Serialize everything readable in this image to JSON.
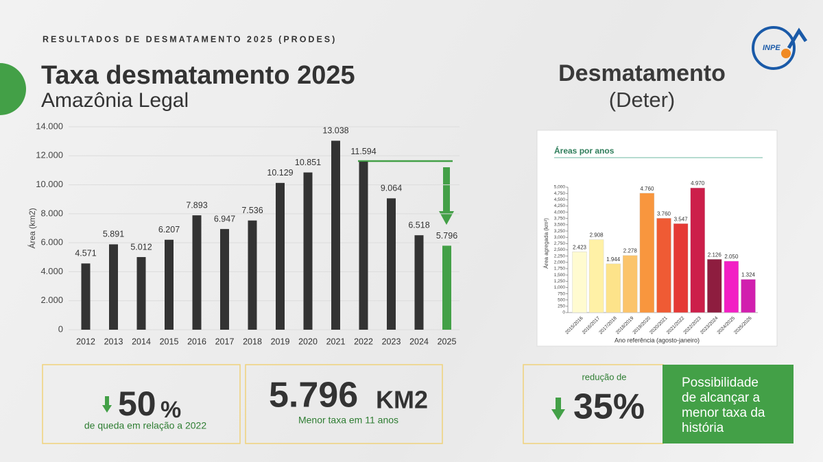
{
  "header": {
    "kicker": "RESULTADOS DE DESMATAMENTO 2025 (PRODES)",
    "title": "Taxa desmatamento 2025",
    "subtitle": "Amazônia Legal",
    "right_title": "Desmatamento",
    "right_subtitle": "(Deter)",
    "logo": "INPE"
  },
  "chart_data": [
    {
      "type": "bar",
      "ylabel": "Área (km2)",
      "categories": [
        "2012",
        "2013",
        "2014",
        "2015",
        "2016",
        "2017",
        "2018",
        "2019",
        "2020",
        "2021",
        "2022",
        "2023",
        "2024",
        "2025"
      ],
      "values": [
        4571,
        5891,
        5012,
        6207,
        7893,
        6947,
        7536,
        10129,
        10851,
        13038,
        11594,
        9064,
        6518,
        5796
      ],
      "value_labels": [
        "4.571",
        "5.891",
        "5.012",
        "6.207",
        "7.893",
        "6.947",
        "7.536",
        "10.129",
        "10.851",
        "13.038",
        "11.594",
        "9.064",
        "6.518",
        "5.796"
      ],
      "colors": [
        "#333333",
        "#333333",
        "#333333",
        "#333333",
        "#333333",
        "#333333",
        "#333333",
        "#333333",
        "#333333",
        "#333333",
        "#333333",
        "#333333",
        "#333333",
        "#43a047"
      ],
      "ylim": [
        0,
        14000
      ],
      "yticks": [
        0,
        {
          "value": 2000,
          "label": "2.000"
        },
        {
          "value": 4000,
          "label": "4.000"
        },
        {
          "value": 6000,
          "label": "6.000"
        },
        {
          "value": 8000,
          "label": "8.000"
        },
        {
          "value": 10000,
          "label": "10.000"
        },
        {
          "value": 12000,
          "label": "12.000"
        },
        {
          "value": 14000,
          "label": "14.000"
        }
      ],
      "grid": true
    },
    {
      "type": "bar",
      "title": "Áreas por anos",
      "ylabel": "Área agregada (km²)",
      "xlabel": "Ano referência (agosto-janeiro)",
      "categories": [
        "2015/2016",
        "2016/2017",
        "2017/2018",
        "2018/2019",
        "2019/2020",
        "2020/2021",
        "2021/2022",
        "2022/2023",
        "2023/2024",
        "2024/2025",
        "2025/2026"
      ],
      "values": [
        2423,
        2908,
        1944,
        2278,
        4760,
        3760,
        3547,
        4970,
        2126,
        2050,
        1324
      ],
      "value_labels": [
        "2.423",
        "2.908",
        "1.944",
        "2.278",
        "4.760",
        "3.760",
        "3.547",
        "4.970",
        "2.126",
        "2.050",
        "1.324"
      ],
      "colors": [
        "#fffbd0",
        "#fff1a6",
        "#fde38a",
        "#fbc46b",
        "#f8963e",
        "#ef5b34",
        "#e53935",
        "#cc1f4a",
        "#8e1d3f",
        "#f21fc4",
        "#d11fae"
      ],
      "ylim": [
        0,
        5000
      ],
      "yticks": [
        0,
        250,
        500,
        750,
        {
          "value": 1000,
          "label": "1,000"
        },
        {
          "value": 1250,
          "label": "1,250"
        },
        {
          "value": 1500,
          "label": "1,500"
        },
        {
          "value": 1750,
          "label": "1,750"
        },
        {
          "value": 2000,
          "label": "2,000"
        },
        {
          "value": 2250,
          "label": "2,250"
        },
        {
          "value": 2500,
          "label": "2,500"
        },
        {
          "value": 2750,
          "label": "2,750"
        },
        {
          "value": 3000,
          "label": "3,000"
        },
        {
          "value": 3250,
          "label": "3,250"
        },
        {
          "value": 3500,
          "label": "3,500"
        },
        {
          "value": 3750,
          "label": "3,750"
        },
        {
          "value": 4000,
          "label": "4,000"
        },
        {
          "value": 4250,
          "label": "4,250"
        },
        {
          "value": 4500,
          "label": "4,500"
        },
        {
          "value": 4750,
          "label": "4,750"
        },
        {
          "value": 5000,
          "label": "5,000"
        }
      ],
      "grid": false
    }
  ],
  "cards": [
    {
      "big": "50",
      "unit": "%",
      "caption": "de queda em relação a 2022"
    },
    {
      "big": "5.796",
      "unit": "KM2",
      "caption": "Menor taxa em 11 anos"
    },
    {
      "caption": "redução de",
      "big": "35%"
    },
    {
      "text": "Possibilidade de alcançar a menor taxa da história"
    }
  ]
}
